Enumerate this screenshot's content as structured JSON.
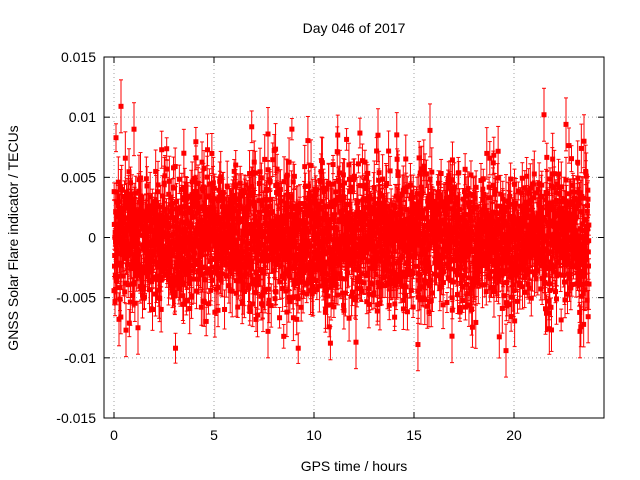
{
  "chart_data": {
    "type": "scatter",
    "title": "Day 046 of 2017",
    "xlabel": "GPS time / hours",
    "ylabel": "GNSS Solar Flare indicator / TECUs",
    "xlim": [
      -0.5,
      24.5
    ],
    "ylim": [
      -0.015,
      0.015
    ],
    "x_ticks": [
      0,
      5,
      10,
      15,
      20
    ],
    "x_tick_labels": [
      "0",
      "5",
      "10",
      "15",
      "20"
    ],
    "y_ticks": [
      -0.015,
      -0.01,
      -0.005,
      0,
      0.005,
      0.01,
      0.015
    ],
    "y_tick_labels": [
      "-0.015",
      "-0.01",
      "-0.005",
      "0",
      "0.005",
      "0.01",
      "0.015"
    ],
    "grid": true,
    "color": "#ff0000",
    "series": [
      {
        "x_range": [
          0,
          23.75
        ],
        "n_points": 2850,
        "y_std": 0.0028,
        "err_min": 0.0007,
        "err_max": 0.0022,
        "outliers": [
          {
            "x": 0.35,
            "y": 0.0109
          },
          {
            "x": 1.0,
            "y": 0.009
          },
          {
            "x": 0.25,
            "y": -0.0068
          },
          {
            "x": 0.6,
            "y": -0.0077
          },
          {
            "x": 1.2,
            "y": -0.0075
          },
          {
            "x": 7.7,
            "y": 0.0086
          },
          {
            "x": 7.7,
            "y": -0.0078
          },
          {
            "x": 12.1,
            "y": -0.0087
          },
          {
            "x": 13.2,
            "y": 0.0085
          },
          {
            "x": 15.8,
            "y": 0.0089
          },
          {
            "x": 16.9,
            "y": -0.0082
          },
          {
            "x": 19.6,
            "y": -0.0094
          },
          {
            "x": 21.5,
            "y": 0.0102
          },
          {
            "x": 22.6,
            "y": 0.0094
          },
          {
            "x": 23.3,
            "y": -0.0078
          },
          {
            "x": 23.5,
            "y": 0.008
          }
        ]
      }
    ]
  }
}
